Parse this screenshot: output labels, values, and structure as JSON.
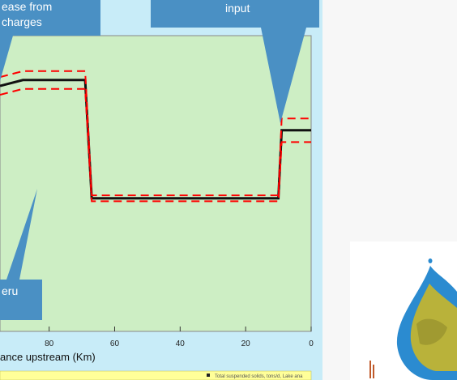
{
  "callouts": {
    "top_left": [
      "ease from",
      "charges"
    ],
    "top_right": [
      "input"
    ],
    "bottom_left": [
      "eru"
    ]
  },
  "legend_entry": "Total suspended solids, tons/d, Lake ana",
  "chart_data": {
    "type": "line",
    "xlabel": "ance upstream (Km)",
    "xlim": [
      95,
      0
    ],
    "ylim": [
      0,
      1
    ],
    "x_ticks": [
      {
        "value": 80,
        "label": "80"
      },
      {
        "value": 60,
        "label": "60"
      },
      {
        "value": 40,
        "label": "40"
      },
      {
        "value": 20,
        "label": "20"
      },
      {
        "value": 0,
        "label": "0"
      }
    ],
    "series": [
      {
        "style": "solid-black",
        "x": [
          95,
          88,
          69,
          67,
          10,
          9,
          0
        ],
        "y": [
          0.83,
          0.85,
          0.85,
          0.45,
          0.45,
          0.68,
          0.68
        ]
      },
      {
        "style": "dashed-red-upper",
        "x": [
          95,
          88,
          69,
          67,
          10,
          9,
          0
        ],
        "y": [
          0.86,
          0.88,
          0.88,
          0.46,
          0.46,
          0.72,
          0.72
        ]
      },
      {
        "style": "dashed-red-lower",
        "x": [
          95,
          88,
          69,
          67,
          10,
          9,
          0
        ],
        "y": [
          0.8,
          0.82,
          0.82,
          0.44,
          0.44,
          0.64,
          0.64
        ]
      }
    ]
  },
  "colors": {
    "plot_bg": "#cdeec4",
    "frame_bg": "#c8ecf8",
    "callout": "#4a90c4",
    "solid": "#111111",
    "dashed": "#ff0000",
    "logo_blue": "#2b8bd0",
    "logo_green": "#b9b23a"
  },
  "icons": {
    "logo": "water-drop-map-logo"
  }
}
